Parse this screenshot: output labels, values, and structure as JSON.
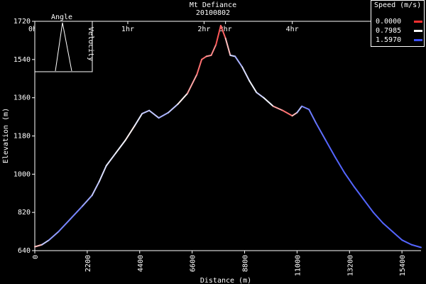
{
  "chart_data": {
    "type": "line",
    "title": "Mt Defiance",
    "subtitle": "20100802",
    "xlabel": "Distance (m)",
    "ylabel": "Elevation (m)",
    "xlim": [
      0,
      16200
    ],
    "ylim": [
      640,
      1720
    ],
    "x_ticks": [
      0,
      2200,
      4400,
      6600,
      8800,
      11000,
      13200,
      15400
    ],
    "y_ticks": [
      640,
      820,
      1000,
      1180,
      1360,
      1540,
      1720
    ],
    "time_ticks": [
      {
        "label": "0hr",
        "x": 0
      },
      {
        "label": "1hr",
        "x": 3900
      },
      {
        "label": "2hr",
        "x": 7100
      },
      {
        "label": "3hr",
        "x": 8000
      },
      {
        "label": "4hr",
        "x": 10800
      }
    ],
    "series": [
      {
        "x": [
          0,
          300,
          600,
          1000,
          1500,
          2000,
          2400,
          2700,
          3000,
          3400,
          3800,
          4200,
          4500,
          4800,
          5200,
          5600,
          6000,
          6400,
          6800,
          7000,
          7200,
          7400,
          7600,
          7800,
          8000,
          8200,
          8400,
          8700,
          9000,
          9300,
          9600,
          10000,
          10400,
          10800,
          11000,
          11200,
          11500,
          11800,
          12200,
          12600,
          13000,
          13400,
          13800,
          14200,
          14600,
          15000,
          15400,
          15800,
          16200
        ],
        "y": [
          658,
          668,
          690,
          730,
          790,
          850,
          900,
          965,
          1040,
          1100,
          1160,
          1230,
          1285,
          1300,
          1265,
          1290,
          1330,
          1380,
          1470,
          1540,
          1555,
          1560,
          1610,
          1700,
          1640,
          1560,
          1555,
          1505,
          1440,
          1385,
          1360,
          1320,
          1300,
          1275,
          1290,
          1320,
          1305,
          1240,
          1160,
          1080,
          1005,
          940,
          880,
          820,
          770,
          730,
          690,
          668,
          655
        ],
        "speed": [
          0.2,
          0.9,
          1.2,
          1.3,
          1.4,
          1.3,
          1.1,
          1.0,
          0.9,
          0.9,
          0.8,
          0.7,
          1.1,
          1.0,
          1.1,
          1.2,
          0.9,
          0.6,
          0.3,
          0.2,
          0.3,
          0.5,
          0.2,
          0.1,
          0.3,
          0.8,
          1.2,
          1.1,
          0.8,
          0.9,
          1.1,
          0.6,
          0.3,
          0.2,
          0.9,
          1.3,
          1.4,
          1.4,
          1.5,
          1.5,
          1.5,
          1.5,
          1.5,
          1.5,
          1.5,
          1.5,
          1.5,
          1.5,
          1.5
        ]
      }
    ],
    "legend": {
      "title": "Speed (m/s)",
      "placement": "top-right",
      "entries": [
        {
          "label": "0.0000",
          "color": "#ff3030"
        },
        {
          "label": "0.7985",
          "color": "#ffffff"
        },
        {
          "label": "1.5970",
          "color": "#3c50ff"
        }
      ]
    },
    "inset": {
      "title": "Angle",
      "ylabel": "Velocity",
      "placement": "top-left"
    }
  }
}
